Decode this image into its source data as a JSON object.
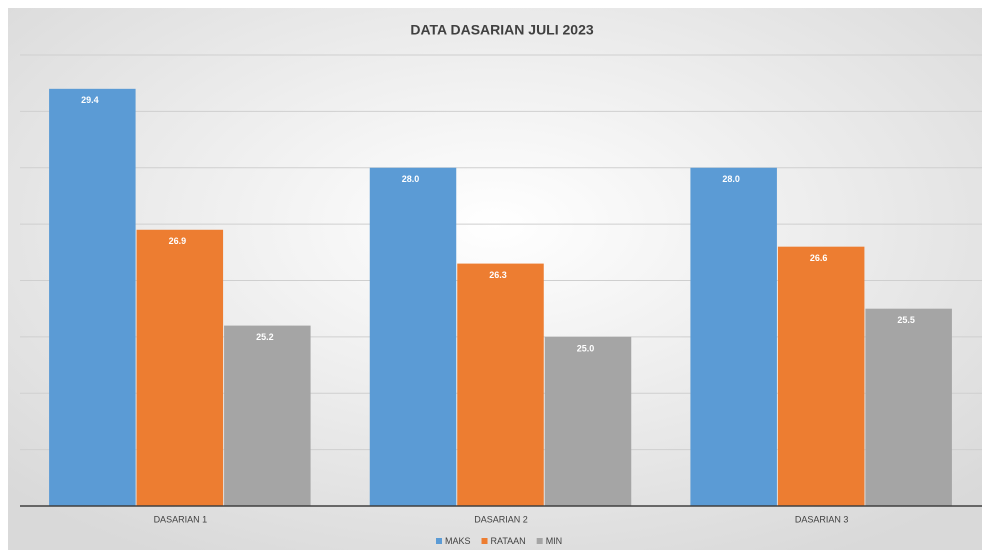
{
  "chart_data": {
    "type": "bar",
    "title": "DATA DASARIAN JULI 2023",
    "categories": [
      "DASARIAN 1",
      "DASARIAN 2",
      "DASARIAN 3"
    ],
    "series": [
      {
        "name": "MAKS",
        "color": "#5b9bd5",
        "values": [
          29.4,
          28.0,
          28.0
        ],
        "value_labels": [
          "29.4",
          "28.0",
          "28.0"
        ]
      },
      {
        "name": "RATAAN",
        "color": "#ed7d31",
        "values": [
          26.9,
          26.3,
          26.6
        ],
        "value_labels": [
          "26.9",
          "26.3",
          "26.6"
        ]
      },
      {
        "name": "MIN",
        "color": "#a5a5a5",
        "values": [
          25.2,
          25.0,
          25.5
        ],
        "value_labels": [
          "25.2",
          "25.0",
          "25.5"
        ]
      }
    ],
    "ylim": [
      22,
      30
    ],
    "yticks": [
      22,
      23,
      24,
      25,
      26,
      27,
      28,
      29,
      30
    ],
    "grid": true,
    "legend": "bottom"
  }
}
